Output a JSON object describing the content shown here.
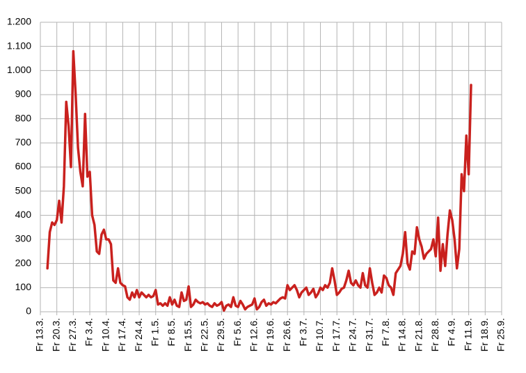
{
  "chart_data": {
    "type": "line",
    "categories": [
      "Fr 13.3.",
      null,
      null,
      null,
      null,
      null,
      null,
      "Fr 20.3.",
      null,
      null,
      null,
      null,
      null,
      null,
      "Fr 27.3.",
      null,
      null,
      null,
      null,
      null,
      null,
      "Fr 3.4.",
      null,
      null,
      null,
      null,
      null,
      null,
      "Fr 10.4.",
      null,
      null,
      null,
      null,
      null,
      null,
      "Fr 17.4.",
      null,
      null,
      null,
      null,
      null,
      null,
      "Fr 24.4.",
      null,
      null,
      null,
      null,
      null,
      null,
      "Fr 1.5.",
      null,
      null,
      null,
      null,
      null,
      null,
      "Fr 8.5.",
      null,
      null,
      null,
      null,
      null,
      null,
      "Fr 15.5.",
      null,
      null,
      null,
      null,
      null,
      null,
      "Fr 22.5.",
      null,
      null,
      null,
      null,
      null,
      null,
      "Fr 29.5.",
      null,
      null,
      null,
      null,
      null,
      null,
      "Fr 5.6.",
      null,
      null,
      null,
      null,
      null,
      null,
      "Fr 12.6.",
      null,
      null,
      null,
      null,
      null,
      null,
      "Fr 19.6.",
      null,
      null,
      null,
      null,
      null,
      null,
      "Fr 26.6.",
      null,
      null,
      null,
      null,
      null,
      null,
      "Fr 3.7.",
      null,
      null,
      null,
      null,
      null,
      null,
      "Fr 10.7.",
      null,
      null,
      null,
      null,
      null,
      null,
      "Fr 17.7.",
      null,
      null,
      null,
      null,
      null,
      null,
      "Fr 24.7.",
      null,
      null,
      null,
      null,
      null,
      null,
      "Fr 31.7.",
      null,
      null,
      null,
      null,
      null,
      null,
      "Fr 7.8.",
      null,
      null,
      null,
      null,
      null,
      null,
      "Fr 14.8.",
      null,
      null,
      null,
      null,
      null,
      null,
      "Fr 21.8.",
      null,
      null,
      null,
      null,
      null,
      null,
      "Fr 28.8.",
      null,
      null,
      null,
      null,
      null,
      null,
      "Fr 4.9.",
      null,
      null,
      null,
      null,
      null,
      null,
      "Fr 11.9.",
      null,
      null,
      null,
      null,
      null,
      null,
      "Fr 18.9.",
      null,
      null,
      null,
      null,
      null,
      null,
      "Fr 25.9."
    ],
    "values": [
      null,
      null,
      null,
      180,
      330,
      370,
      360,
      380,
      460,
      370,
      520,
      870,
      770,
      600,
      1080,
      900,
      680,
      580,
      520,
      820,
      560,
      580,
      400,
      360,
      250,
      240,
      320,
      340,
      300,
      300,
      280,
      130,
      120,
      180,
      120,
      110,
      105,
      60,
      50,
      80,
      60,
      90,
      60,
      80,
      70,
      60,
      70,
      60,
      65,
      90,
      30,
      35,
      25,
      35,
      25,
      60,
      30,
      50,
      25,
      20,
      80,
      45,
      50,
      105,
      20,
      30,
      50,
      40,
      35,
      40,
      30,
      35,
      25,
      20,
      35,
      25,
      30,
      40,
      5,
      25,
      30,
      20,
      60,
      25,
      20,
      45,
      30,
      10,
      20,
      25,
      30,
      55,
      10,
      20,
      40,
      50,
      25,
      35,
      30,
      40,
      35,
      45,
      55,
      60,
      55,
      110,
      90,
      100,
      110,
      90,
      60,
      80,
      90,
      100,
      70,
      80,
      95,
      60,
      75,
      100,
      90,
      110,
      100,
      120,
      180,
      130,
      70,
      80,
      95,
      100,
      130,
      170,
      120,
      110,
      130,
      110,
      100,
      160,
      110,
      100,
      180,
      120,
      70,
      80,
      100,
      80,
      150,
      140,
      110,
      100,
      70,
      160,
      175,
      190,
      240,
      330,
      200,
      175,
      250,
      240,
      350,
      300,
      270,
      220,
      240,
      250,
      260,
      300,
      230,
      390,
      170,
      280,
      190,
      320,
      420,
      380,
      300,
      180,
      260,
      570,
      500,
      730,
      570,
      940,
      null,
      null,
      null,
      null,
      null,
      null,
      null,
      null,
      null,
      null,
      null,
      null,
      null
    ],
    "color": "#c9211e",
    "ylim": [
      0,
      1200
    ],
    "yticks": [
      0,
      100,
      200,
      300,
      400,
      500,
      600,
      700,
      800,
      900,
      {
        "value": 1000,
        "label": "1.000"
      },
      {
        "value": 1100,
        "label": "1.100"
      },
      {
        "value": 1200,
        "label": "1.200"
      }
    ],
    "grid": true
  }
}
